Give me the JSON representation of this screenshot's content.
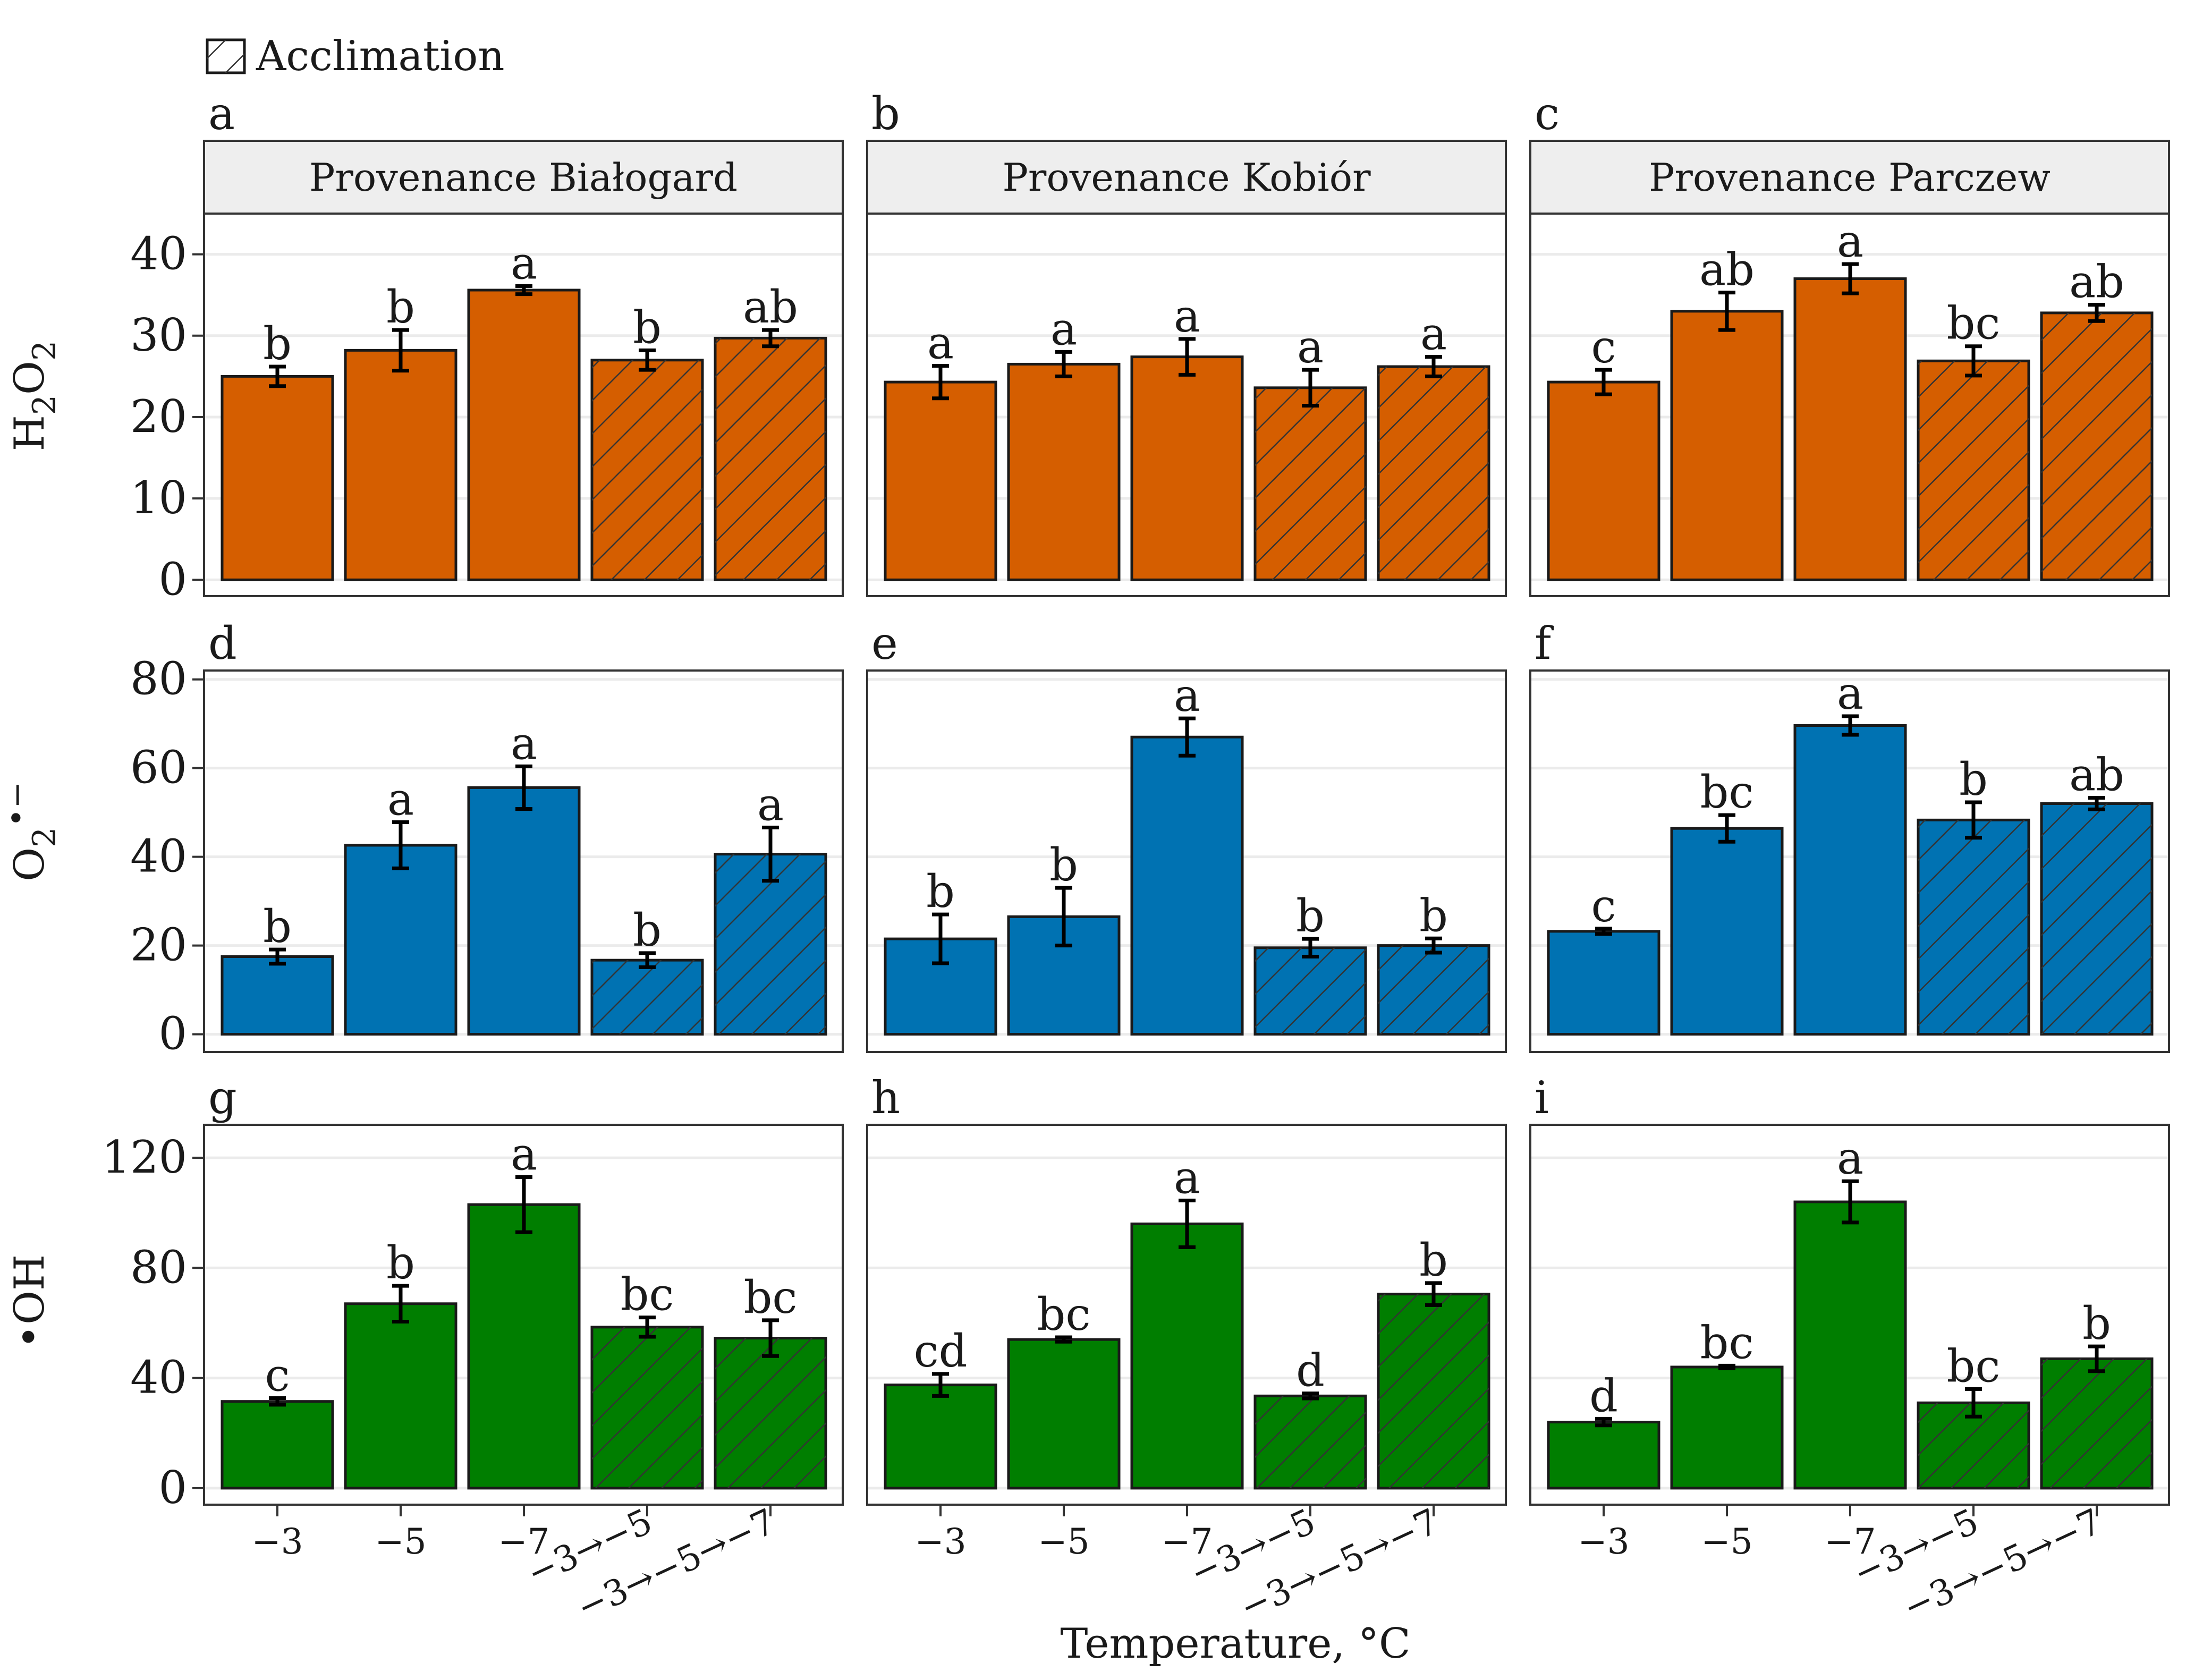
{
  "chart_data": {
    "type": "bar",
    "legend": {
      "label": "Acclimation",
      "position": "top-left"
    },
    "xlabel": "Temperature, °C",
    "categories": [
      "−3",
      "−5",
      "−7",
      "−3→−5",
      "−3→−5→−7"
    ],
    "acclimation": [
      false,
      false,
      false,
      true,
      true
    ],
    "columns": [
      "Provenance Białogard",
      "Provenance Kobiór",
      "Provenance Parczew"
    ],
    "rows": [
      {
        "ylabel": "H₂O₂",
        "ylabel_main": "H",
        "ylabel_sub1": "2",
        "ylabel_mid": "O",
        "ylabel_sub2": "2",
        "ylim": [
          -2,
          45
        ],
        "yticks": [
          0,
          10,
          20,
          30,
          40
        ],
        "yticklabels": [
          "0",
          "10",
          "20",
          "30",
          "40"
        ],
        "color": "#d55e00"
      },
      {
        "ylabel": "O₂•−",
        "ylabel_main": "O",
        "ylabel_sub1": "2",
        "ylabel_sup": "•−",
        "ylim": [
          -4,
          82
        ],
        "yticks": [
          0,
          20,
          40,
          60,
          80
        ],
        "yticklabels": [
          "0",
          "20",
          "40",
          "60",
          "80"
        ],
        "color": "#0072b2"
      },
      {
        "ylabel": "•OH",
        "ylabel_main": "•OH",
        "ylim": [
          -6,
          132
        ],
        "yticks": [
          0,
          40,
          80,
          120
        ],
        "yticklabels": [
          "0",
          "40",
          "80",
          "120"
        ],
        "color": "#007e00"
      }
    ],
    "panels": [
      {
        "letter": "a",
        "row": 0,
        "col": 0,
        "values": [
          25,
          28.2,
          35.6,
          27,
          29.7
        ],
        "errors": [
          1.2,
          2.5,
          0.5,
          1.2,
          1.0
        ],
        "labels": [
          "b",
          "b",
          "a",
          "b",
          "ab"
        ]
      },
      {
        "letter": "b",
        "row": 0,
        "col": 1,
        "values": [
          24.3,
          26.5,
          27.4,
          23.6,
          26.2
        ],
        "errors": [
          2.0,
          1.5,
          2.2,
          2.2,
          1.2
        ],
        "labels": [
          "a",
          "a",
          "a",
          "a",
          "a"
        ]
      },
      {
        "letter": "c",
        "row": 0,
        "col": 2,
        "values": [
          24.3,
          33,
          37,
          26.9,
          32.8
        ],
        "errors": [
          1.5,
          2.3,
          1.8,
          1.8,
          1.0
        ],
        "labels": [
          "c",
          "ab",
          "a",
          "bc",
          "ab"
        ]
      },
      {
        "letter": "d",
        "row": 1,
        "col": 0,
        "values": [
          17.5,
          42.6,
          55.6,
          16.7,
          40.6
        ],
        "errors": [
          1.6,
          5.2,
          4.8,
          1.6,
          6.0
        ],
        "labels": [
          "b",
          "a",
          "a",
          "b",
          "a"
        ]
      },
      {
        "letter": "e",
        "row": 1,
        "col": 1,
        "values": [
          21.5,
          26.5,
          67,
          19.5,
          20
        ],
        "errors": [
          5.5,
          6.5,
          4.2,
          2.0,
          1.6
        ],
        "labels": [
          "b",
          "b",
          "a",
          "b",
          "b"
        ]
      },
      {
        "letter": "f",
        "row": 1,
        "col": 2,
        "values": [
          23.2,
          46.4,
          69.6,
          48.3,
          52
        ],
        "errors": [
          0.6,
          3.0,
          2.1,
          4.0,
          1.3
        ],
        "labels": [
          "c",
          "bc",
          "a",
          "b",
          "ab"
        ]
      },
      {
        "letter": "g",
        "row": 2,
        "col": 0,
        "values": [
          31.5,
          67,
          103,
          58.5,
          54.5
        ],
        "errors": [
          1.2,
          6.5,
          10.0,
          3.5,
          6.5
        ],
        "labels": [
          "c",
          "b",
          "a",
          "bc",
          "bc"
        ]
      },
      {
        "letter": "h",
        "row": 2,
        "col": 1,
        "values": [
          37.5,
          54,
          96,
          33.5,
          70.5
        ],
        "errors": [
          4.0,
          0.8,
          8.5,
          0.9,
          4.0
        ],
        "labels": [
          "cd",
          "bc",
          "a",
          "d",
          "b"
        ]
      },
      {
        "letter": "i",
        "row": 2,
        "col": 2,
        "values": [
          24,
          44,
          104,
          31,
          47
        ],
        "errors": [
          1.2,
          0.5,
          7.5,
          5.0,
          4.5
        ],
        "labels": [
          "d",
          "bc",
          "a",
          "bc",
          "b"
        ]
      }
    ]
  }
}
